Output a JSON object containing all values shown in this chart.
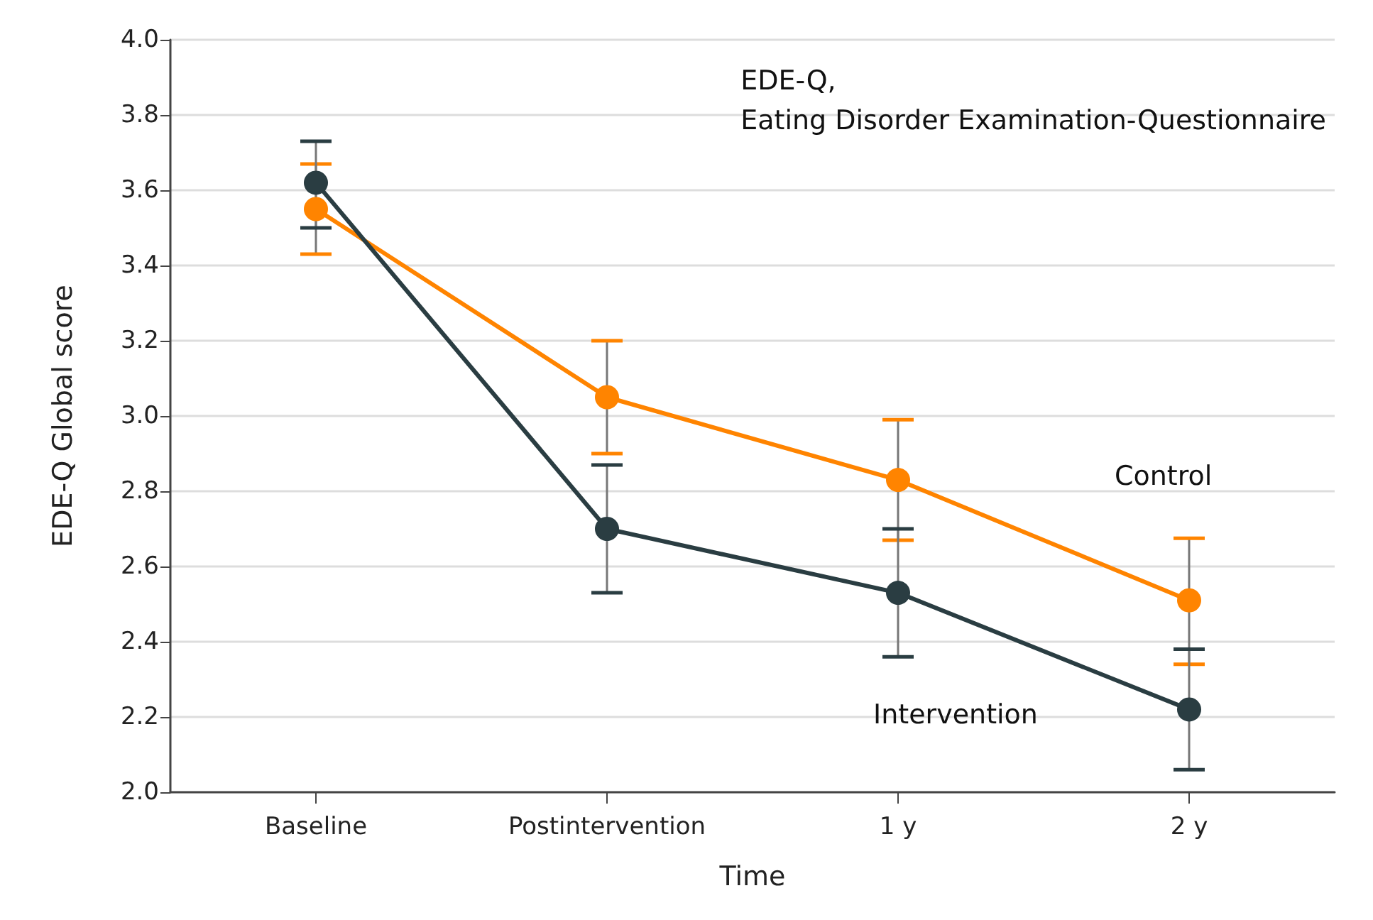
{
  "chart_data": {
    "type": "line",
    "categories": [
      "Baseline",
      "Postintervention",
      "1 y",
      "2 y"
    ],
    "xlabel": "Time",
    "ylabel": "EDE-Q Global score",
    "annotations": [
      "EDE-Q,\nEating Disorder Examination-Questionnaire"
    ],
    "series": [
      {
        "name": "Control",
        "color": "#ff8400",
        "values": [
          3.55,
          3.05,
          2.83,
          2.51
        ],
        "errors": [
          [
            3.43,
            3.67
          ],
          [
            2.9,
            3.2
          ],
          [
            2.67,
            2.99
          ],
          [
            2.34,
            2.675
          ]
        ]
      },
      {
        "name": "Intervention",
        "color": "#2a3d42",
        "values": [
          3.62,
          2.7,
          2.53,
          2.22
        ],
        "errors": [
          [
            3.5,
            3.73
          ],
          [
            2.53,
            2.87
          ],
          [
            2.36,
            2.7
          ],
          [
            2.06,
            2.38
          ]
        ]
      }
    ],
    "ylim": [
      2.0,
      4.0
    ],
    "yticks": [
      {
        "value": 2,
        "label": "2.0"
      },
      2.2,
      2.4,
      2.6,
      2.8,
      {
        "value": 3,
        "label": "3.0"
      },
      3.2,
      3.4,
      3.6,
      3.8,
      {
        "value": 4,
        "label": "4.0"
      }
    ],
    "grid": "y",
    "marker": "circle",
    "line_style": "solid",
    "legend": false
  }
}
